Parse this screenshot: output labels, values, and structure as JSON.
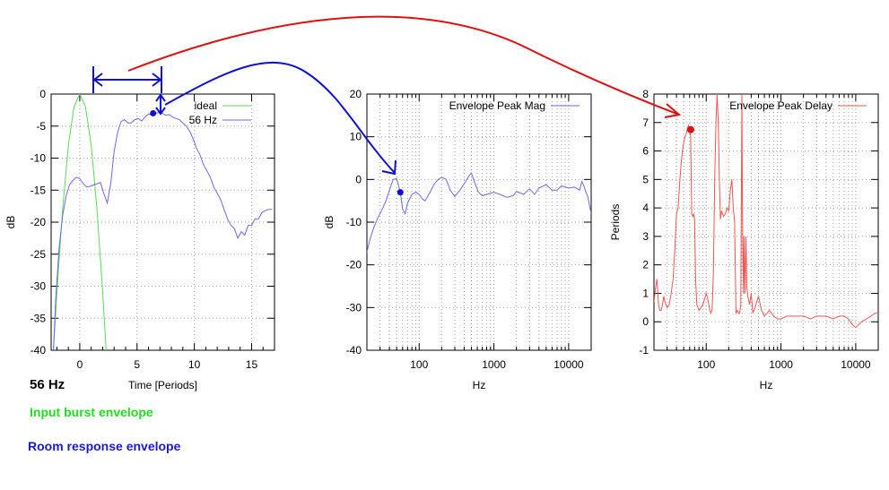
{
  "captions": {
    "frequency": "56 Hz",
    "input_label": "Input burst envelope",
    "room_label": "Room response envelope",
    "input_color": "#22dd22",
    "room_color": "#1a1acc"
  },
  "colors": {
    "blue_series": "#6a6ae8",
    "green_series": "#55dd55",
    "red_series": "#ee5555",
    "arrow_blue": "#1010d0",
    "arrow_red": "#dd1111"
  },
  "chart_data": [
    {
      "type": "line",
      "xlabel": "Time [Periods]",
      "ylabel": "dB",
      "xlim": [
        -2.5,
        17
      ],
      "ylim": [
        -40,
        0
      ],
      "xticks": [
        0,
        5,
        10,
        15
      ],
      "yticks": [
        0,
        -5,
        -10,
        -15,
        -20,
        -25,
        -30,
        -35,
        -40
      ],
      "xscale": "linear",
      "grid": true,
      "legend": "top-right",
      "series": [
        {
          "name": "ideal",
          "color": "#55dd55",
          "x": [
            -2.3,
            -2.0,
            -1.5,
            -1.0,
            -0.5,
            0.0,
            0.5,
            1.0,
            1.5,
            2.0,
            2.3
          ],
          "y": [
            -40,
            -31,
            -18,
            -8,
            -2,
            0,
            -2,
            -8,
            -18,
            -31,
            -40
          ]
        },
        {
          "name": "56 Hz",
          "color": "#6a6ae8",
          "x": [
            -2.3,
            -2.1,
            -1.8,
            -1.5,
            -1.2,
            -0.9,
            -0.6,
            -0.3,
            0.0,
            0.3,
            0.6,
            0.9,
            1.2,
            1.5,
            1.8,
            2.1,
            2.4,
            2.7,
            3.0,
            3.3,
            3.6,
            3.9,
            4.2,
            4.5,
            4.8,
            5.1,
            5.4,
            5.7,
            6.0,
            6.3,
            6.6,
            6.9,
            7.2,
            7.5,
            7.8,
            8.1,
            8.4,
            8.7,
            9.0,
            9.3,
            9.6,
            9.9,
            10.2,
            10.5,
            10.8,
            11.1,
            11.4,
            11.7,
            12.0,
            12.3,
            12.6,
            12.9,
            13.2,
            13.5,
            13.8,
            14.1,
            14.4,
            14.7,
            15.0,
            15.3,
            15.6,
            15.9,
            16.2,
            16.5,
            16.8
          ],
          "y": [
            -40,
            -32,
            -24,
            -19,
            -16,
            -14.2,
            -13.5,
            -13.0,
            -13.2,
            -14.0,
            -14.5,
            -14.4,
            -14.2,
            -14.0,
            -13.8,
            -15.5,
            -17.0,
            -14.0,
            -9.0,
            -6.0,
            -4.3,
            -4.0,
            -4.5,
            -4.5,
            -4.0,
            -3.8,
            -4.2,
            -3.6,
            -3.1,
            -3.3,
            -3.0,
            -2.9,
            -3.0,
            -3.3,
            -3.2,
            -3.6,
            -3.8,
            -4.0,
            -4.5,
            -5.0,
            -5.8,
            -7.0,
            -8.5,
            -9.5,
            -11.0,
            -12.0,
            -13.0,
            -14.5,
            -15.5,
            -16.5,
            -18.0,
            -19.5,
            -20.5,
            -21.0,
            -22.5,
            -21.5,
            -22.0,
            -20.5,
            -20.5,
            -19.5,
            -19.5,
            -18.5,
            -18.2,
            -18.0,
            -18.0
          ]
        }
      ],
      "marker": {
        "x": 6.4,
        "y": -3.0
      }
    },
    {
      "type": "line",
      "xlabel": "Hz",
      "ylabel": "dB",
      "xscale": "log",
      "xlim": [
        20,
        20000
      ],
      "ylim": [
        -40,
        20
      ],
      "xticks": [
        100,
        1000,
        10000
      ],
      "xticklabels": [
        "100",
        "1000",
        "10000"
      ],
      "yticks": [
        20,
        10,
        0,
        -10,
        -20,
        -30,
        -40
      ],
      "grid": true,
      "legend": "top-right",
      "series": [
        {
          "name": "Envelope Peak Mag",
          "color": "#6a6ae8",
          "x": [
            20,
            22,
            25,
            28,
            32,
            36,
            40,
            45,
            50,
            56,
            60,
            65,
            70,
            80,
            90,
            100,
            110,
            120,
            140,
            160,
            180,
            200,
            230,
            260,
            300,
            350,
            400,
            450,
            500,
            560,
            620,
            700,
            800,
            900,
            1000,
            1200,
            1500,
            1800,
            2000,
            2500,
            3000,
            3500,
            4000,
            5000,
            6000,
            7000,
            8000,
            10000,
            12000,
            14000,
            15000,
            16000,
            17000,
            18000,
            19000,
            20000
          ],
          "y": [
            -17,
            -14,
            -11,
            -9,
            -7,
            -5,
            -2.5,
            0,
            0.2,
            -3.0,
            -7,
            -8,
            -5.5,
            -3.5,
            -3.0,
            -3.5,
            -4.5,
            -5,
            -3,
            -1,
            0,
            0.5,
            0,
            -2.5,
            -4,
            -2.5,
            -1.0,
            0.5,
            1.5,
            -1.0,
            -3.0,
            -3.8,
            -3.5,
            -3.2,
            -3.0,
            -3.5,
            -4.2,
            -3.8,
            -2.8,
            -3.5,
            -2.2,
            -3.5,
            -2.0,
            -1.2,
            -2.5,
            -2.5,
            -1.5,
            -2.0,
            -1.8,
            -2.5,
            -0.5,
            -1.5,
            -3.0,
            -4.0,
            -6.0,
            -8.0
          ]
        }
      ],
      "marker": {
        "x": 56,
        "y": -3.0
      }
    },
    {
      "type": "line",
      "xlabel": "Hz",
      "ylabel": "Periods",
      "xscale": "log",
      "xlim": [
        20,
        20000
      ],
      "ylim": [
        -1,
        8
      ],
      "xticks": [
        100,
        1000,
        10000
      ],
      "xticklabels": [
        "100",
        "1000",
        "10000"
      ],
      "yticks": [
        -1,
        0,
        1,
        2,
        3,
        4,
        5,
        6,
        7,
        8
      ],
      "grid": true,
      "legend": "top-right",
      "series": [
        {
          "name": "Envelope Peak Delay",
          "color": "#ee5555",
          "x": [
            20,
            21,
            22,
            23,
            24,
            25,
            26,
            27,
            28,
            30,
            32,
            34,
            36,
            38,
            40,
            42,
            44,
            46,
            48,
            50,
            52,
            54,
            56,
            58,
            60,
            62,
            64,
            66,
            68,
            70,
            72,
            75,
            80,
            85,
            90,
            95,
            100,
            105,
            110,
            112,
            115,
            120,
            125,
            130,
            135,
            140,
            145,
            150,
            155,
            160,
            170,
            180,
            190,
            200,
            210,
            220,
            230,
            240,
            250,
            260,
            270,
            280,
            290,
            300,
            305,
            310,
            315,
            320,
            330,
            340,
            350,
            360,
            380,
            400,
            420,
            450,
            500,
            550,
            600,
            650,
            700,
            800,
            900,
            1000,
            1200,
            1500,
            2000,
            2500,
            3000,
            3500,
            4000,
            5000,
            6000,
            7000,
            8000,
            9000,
            10000,
            12000,
            14000,
            16000,
            18000,
            20000
          ],
          "y": [
            0.7,
            1.2,
            1.5,
            0.6,
            0.4,
            0.4,
            0.6,
            0.9,
            0.7,
            0.5,
            0.6,
            1.0,
            1.5,
            2.5,
            3.8,
            4.0,
            4.8,
            5.5,
            6.0,
            6.3,
            6.5,
            6.6,
            6.8,
            6.9,
            6.7,
            6.5,
            3.8,
            3.7,
            3.8,
            3.6,
            1.5,
            0.6,
            0.4,
            0.5,
            0.6,
            0.8,
            1.0,
            0.8,
            0.5,
            0.4,
            0.3,
            0.4,
            1.8,
            5.0,
            7.0,
            8.0,
            7.0,
            5.0,
            3.6,
            3.9,
            3.7,
            3.8,
            4.0,
            3.9,
            4.6,
            5.0,
            4.0,
            3.5,
            0.3,
            0.4,
            0.3,
            0.3,
            0.6,
            8.0,
            4.0,
            2.0,
            1.0,
            3.0,
            1.0,
            3.0,
            1.2,
            0.9,
            0.6,
            1.0,
            0.3,
            0.5,
            0.9,
            0.4,
            0.2,
            0.3,
            0.4,
            0.2,
            0.1,
            0.1,
            0.2,
            0.2,
            0.2,
            0.1,
            0.2,
            0.2,
            0.2,
            0.1,
            0.2,
            0.2,
            0.1,
            -0.1,
            -0.2,
            0.0,
            0.1,
            0.2,
            0.3,
            0.3
          ]
        }
      ],
      "marker": {
        "x": 62,
        "y": 6.75
      }
    }
  ]
}
